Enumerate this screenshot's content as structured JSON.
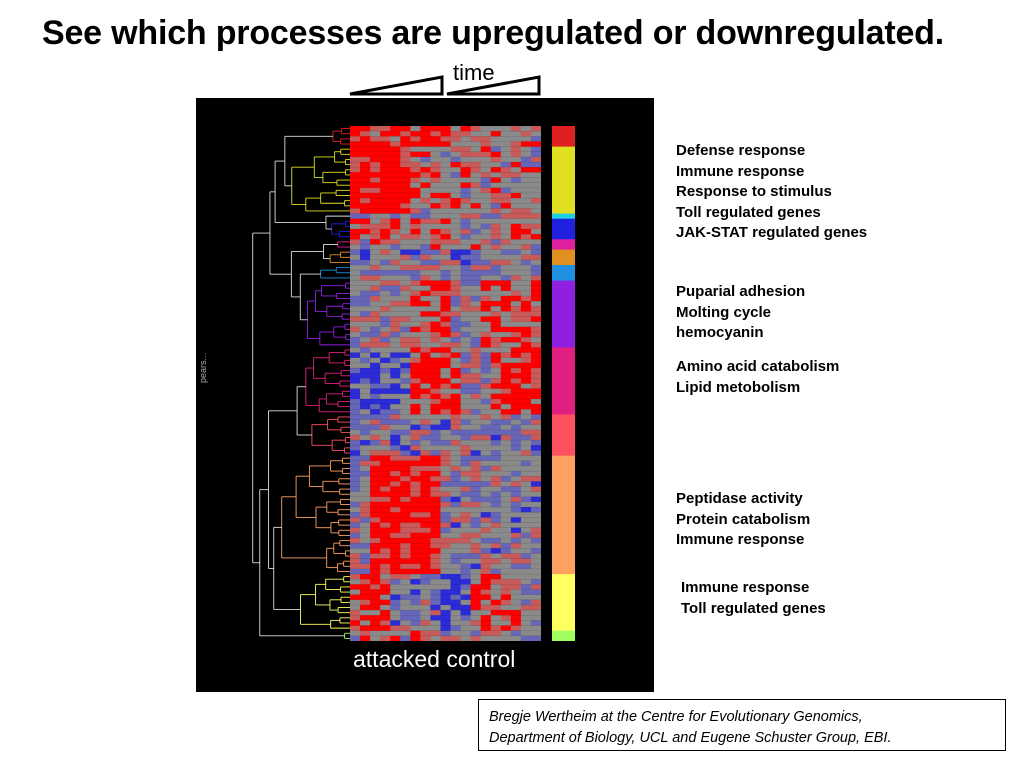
{
  "slide": {
    "title": "See which processes are upregulated or downregulated.",
    "time_label": "time",
    "panel_caption": "attacked control",
    "dendrogram_label": "pears..."
  },
  "annotations": [
    {
      "id": "group-1",
      "lines": [
        "Defense response",
        "Immune response",
        "Response to stimulus",
        "Toll regulated genes",
        "JAK-STAT regulated genes"
      ]
    },
    {
      "id": "group-2",
      "lines": [
        "Puparial adhesion",
        "Molting cycle",
        "hemocyanin"
      ]
    },
    {
      "id": "group-3",
      "lines": [
        "Amino acid catabolism",
        "Lipid metobolism"
      ]
    },
    {
      "id": "group-4",
      "lines": [
        "Peptidase activity",
        "Protein catabolism",
        "Immune response"
      ]
    },
    {
      "id": "group-5",
      "lines": [
        "Immune response",
        "Toll regulated genes"
      ]
    }
  ],
  "credit": {
    "line1": "Bregje Wertheim at the Centre for Evolutionary Genomics,",
    "line2": "Department of Biology, UCL and Eugene Schuster Group, EBI."
  },
  "heatmap": {
    "rows": 100,
    "cols": 19,
    "colors": {
      "up": "#ff0000",
      "down": "#2b2bd8",
      "neutral": "#8a8a8a"
    }
  },
  "clusters": [
    {
      "color": "#e02020",
      "size": 4
    },
    {
      "color": "#e0e020",
      "size": 13
    },
    {
      "color": "#20d0e0",
      "size": 1
    },
    {
      "color": "#2020e0",
      "size": 4
    },
    {
      "color": "#e020a0",
      "size": 2
    },
    {
      "color": "#e09020",
      "size": 3
    },
    {
      "color": "#2090e0",
      "size": 3
    },
    {
      "color": "#9020e0",
      "size": 13
    },
    {
      "color": "#e02080",
      "size": 13
    },
    {
      "color": "#ff5060",
      "size": 8
    },
    {
      "color": "#ffa060",
      "size": 23
    },
    {
      "color": "#ffff60",
      "size": 11
    },
    {
      "color": "#a0ff60",
      "size": 2
    }
  ]
}
